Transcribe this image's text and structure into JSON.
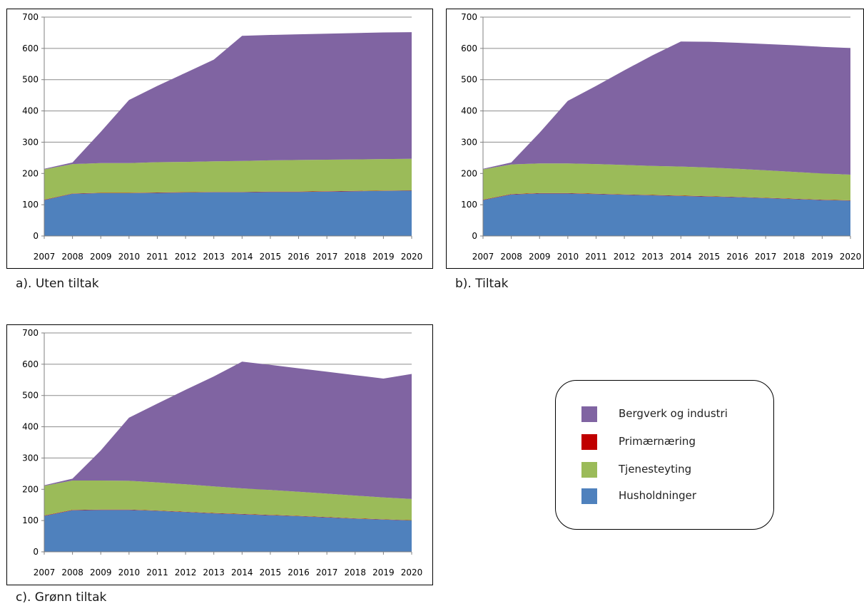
{
  "legend": {
    "items": [
      {
        "label": "Bergverk og industri",
        "color": "#8064A2"
      },
      {
        "label": "Primærnæring",
        "color": "#C00000"
      },
      {
        "label": "Tjenesteyting",
        "color": "#9BBB59"
      },
      {
        "label": "Husholdninger",
        "color": "#4F81BD"
      }
    ]
  },
  "chart_data": [
    {
      "type": "area",
      "stacked": true,
      "caption": "a). Uten tiltak",
      "x": [
        2007,
        2008,
        2009,
        2010,
        2011,
        2012,
        2013,
        2014,
        2015,
        2016,
        2017,
        2018,
        2019,
        2020
      ],
      "ylim": [
        0,
        700
      ],
      "yticks": [
        0,
        100,
        200,
        300,
        400,
        500,
        600,
        700
      ],
      "grid": true,
      "series": [
        {
          "name": "Husholdninger",
          "color": "#4F81BD",
          "values": [
            115,
            135,
            137,
            137,
            138,
            139,
            140,
            140,
            141,
            141,
            142,
            143,
            144,
            145
          ]
        },
        {
          "name": "Primærnæring",
          "color": "#C00000",
          "values": [
            1,
            1,
            1,
            1,
            1,
            1,
            1,
            1,
            1,
            1,
            1,
            1,
            1,
            1
          ]
        },
        {
          "name": "Tjenesteyting",
          "color": "#9BBB59",
          "values": [
            97,
            94,
            95,
            95,
            97,
            97,
            98,
            99,
            100,
            101,
            101,
            101,
            101,
            101
          ]
        },
        {
          "name": "Bergverk og industri",
          "color": "#8064A2",
          "values": [
            2,
            5,
            100,
            202,
            244,
            285,
            325,
            400,
            401,
            402,
            403,
            404,
            405,
            405
          ]
        }
      ]
    },
    {
      "type": "area",
      "stacked": true,
      "caption": "b). Tiltak",
      "x": [
        2007,
        2008,
        2009,
        2010,
        2011,
        2012,
        2013,
        2014,
        2015,
        2016,
        2017,
        2018,
        2019,
        2020
      ],
      "ylim": [
        0,
        700
      ],
      "yticks": [
        0,
        100,
        200,
        300,
        400,
        500,
        600,
        700
      ],
      "grid": true,
      "series": [
        {
          "name": "Husholdninger",
          "color": "#4F81BD",
          "values": [
            115,
            133,
            136,
            136,
            134,
            132,
            130,
            128,
            126,
            124,
            121,
            118,
            115,
            113
          ]
        },
        {
          "name": "Primærnæring",
          "color": "#C00000",
          "values": [
            1,
            1,
            1,
            1,
            1,
            1,
            1,
            1,
            1,
            1,
            1,
            1,
            1,
            1
          ]
        },
        {
          "name": "Tjenesteyting",
          "color": "#9BBB59",
          "values": [
            97,
            95,
            95,
            95,
            95,
            94,
            93,
            93,
            92,
            90,
            88,
            86,
            84,
            82
          ]
        },
        {
          "name": "Bergverk og industri",
          "color": "#8064A2",
          "values": [
            2,
            6,
            98,
            200,
            250,
            303,
            354,
            400,
            402,
            403,
            404,
            405,
            405,
            405
          ]
        }
      ]
    },
    {
      "type": "area",
      "stacked": true,
      "caption": "c). Grønn tiltak",
      "x": [
        2007,
        2008,
        2009,
        2010,
        2011,
        2012,
        2013,
        2014,
        2015,
        2016,
        2017,
        2018,
        2019,
        2020
      ],
      "ylim": [
        0,
        700
      ],
      "yticks": [
        0,
        100,
        200,
        300,
        400,
        500,
        600,
        700
      ],
      "grid": true,
      "series": [
        {
          "name": "Husholdninger",
          "color": "#4F81BD",
          "values": [
            115,
            133,
            134,
            134,
            131,
            127,
            123,
            120,
            117,
            114,
            110,
            106,
            103,
            100
          ]
        },
        {
          "name": "Primærnæring",
          "color": "#C00000",
          "values": [
            1,
            1,
            1,
            1,
            1,
            1,
            1,
            1,
            1,
            1,
            1,
            1,
            1,
            1
          ]
        },
        {
          "name": "Tjenesteyting",
          "color": "#9BBB59",
          "values": [
            95,
            94,
            93,
            92,
            90,
            88,
            85,
            82,
            80,
            77,
            75,
            73,
            70,
            68
          ]
        },
        {
          "name": "Bergverk og industri",
          "color": "#8064A2",
          "values": [
            2,
            6,
            96,
            202,
            252,
            302,
            352,
            405,
            400,
            395,
            390,
            385,
            380,
            400
          ]
        }
      ]
    }
  ]
}
